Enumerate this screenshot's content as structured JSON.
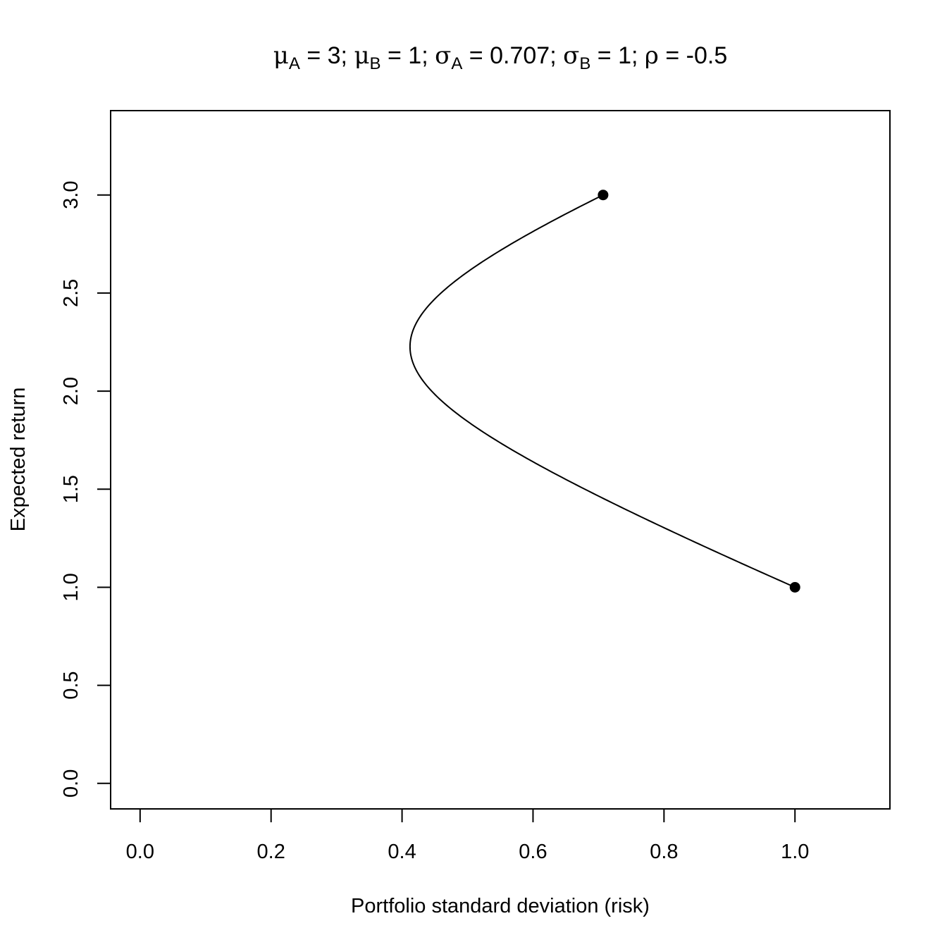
{
  "chart_data": {
    "type": "line",
    "title": {
      "parts": [
        {
          "sym": "μ",
          "sub": "A",
          "rest": "  = 3;  "
        },
        {
          "sym": "μ",
          "sub": "B",
          "rest": "  = 1;  "
        },
        {
          "sym": "σ",
          "sub": "A",
          "rest": "  = 0.707;  "
        },
        {
          "sym": "σ",
          "sub": "B",
          "rest": "  = 1;  "
        },
        {
          "sym": "ρ",
          "sub": "",
          "rest": "  = -0.5"
        }
      ]
    },
    "xlabel": "Portfolio standard deviation (risk)",
    "ylabel": "Expected return",
    "xlim": [
      -0.045,
      1.145
    ],
    "ylim": [
      -0.13,
      3.43
    ],
    "x_ticks": [
      0.0,
      0.2,
      0.4,
      0.6,
      0.8,
      1.0
    ],
    "x_tick_labels": [
      "0.0",
      "0.2",
      "0.4",
      "0.6",
      "0.8",
      "1.0"
    ],
    "y_ticks": [
      0.0,
      0.5,
      1.0,
      1.5,
      2.0,
      2.5,
      3.0
    ],
    "y_tick_labels": [
      "0.0",
      "0.5",
      "1.0",
      "1.5",
      "2.0",
      "2.5",
      "3.0"
    ],
    "frontier_params": {
      "mu_a": 3,
      "mu_b": 1,
      "sigma_a": 0.707,
      "sigma_b": 1,
      "rho": -0.5
    },
    "points": [
      {
        "x": 0.707,
        "y": 3.0
      },
      {
        "x": 1.0,
        "y": 1.0
      }
    ],
    "colors": {
      "line": "#000000",
      "point": "#000000"
    }
  }
}
